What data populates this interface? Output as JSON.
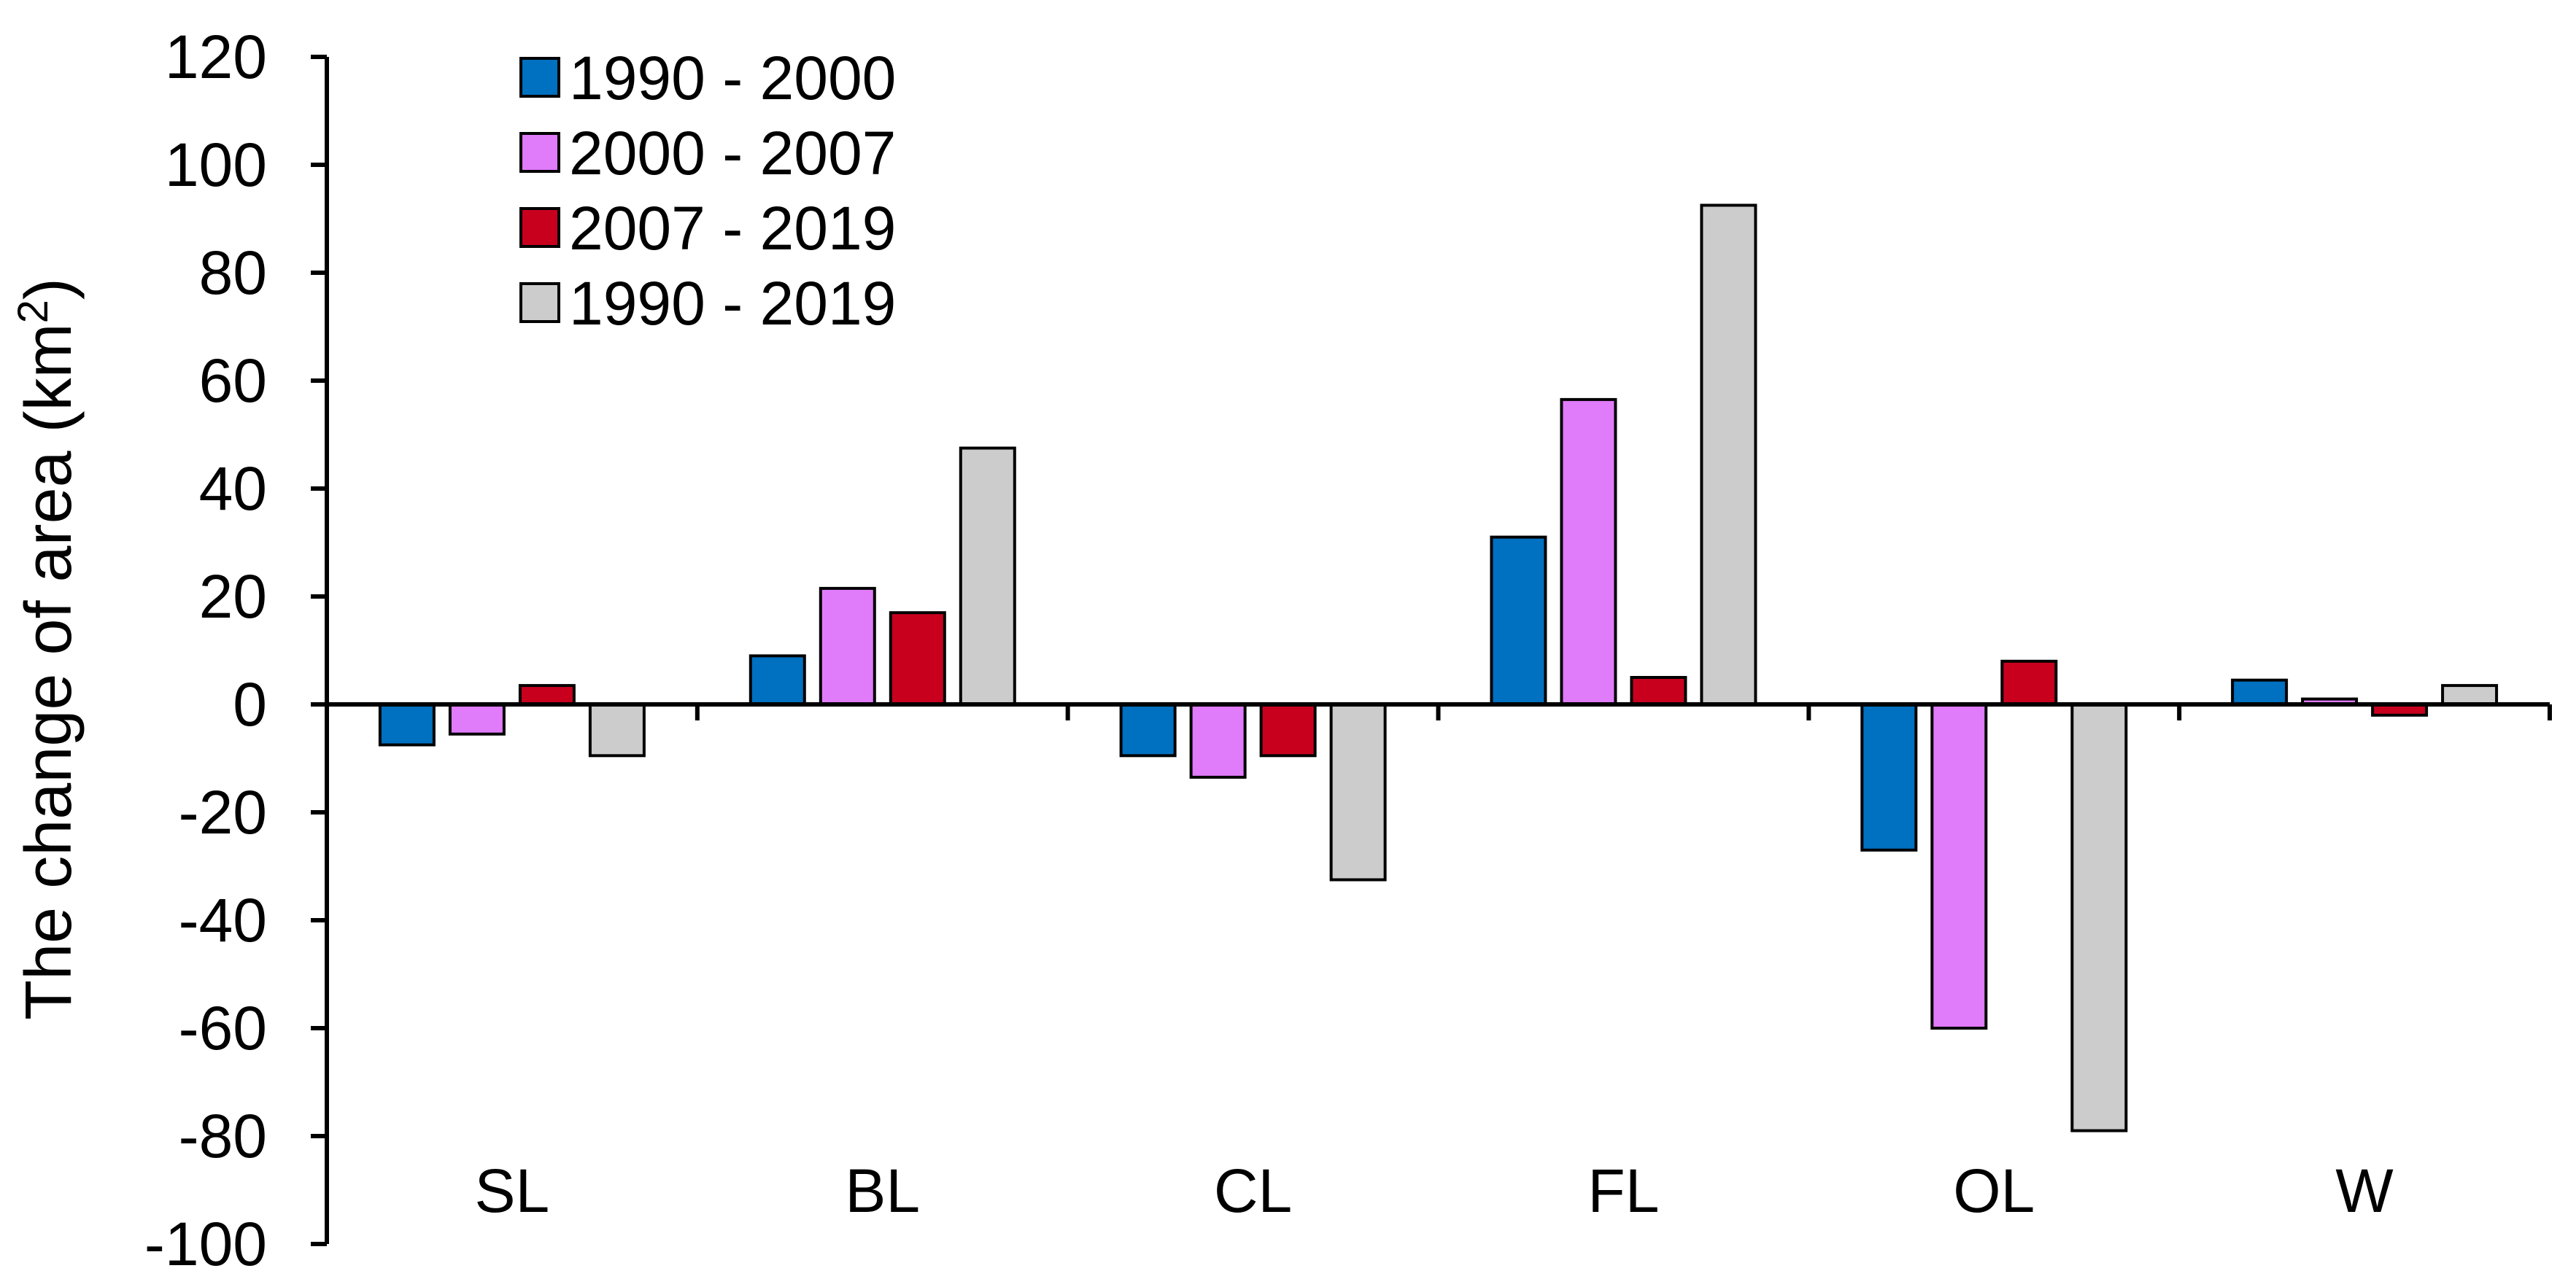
{
  "chart_data": {
    "type": "bar",
    "title": "",
    "xlabel": "",
    "ylabel": "The change of area (km²)",
    "ylabel_parts": {
      "text": "The change of area (km",
      "sup": "2",
      "close": ")"
    },
    "ylim": [
      -100,
      120
    ],
    "ytick_step": 20,
    "yticks": [
      120,
      100,
      80,
      60,
      40,
      20,
      0,
      -20,
      -40,
      -60,
      -80,
      -100
    ],
    "grid": false,
    "legend_position": "top-left",
    "categories": [
      "SL",
      "BL",
      "CL",
      "FL",
      "OL",
      "W"
    ],
    "series": [
      {
        "name": "1990 - 2000",
        "color": "#0070C0",
        "values": [
          -7.5,
          9,
          -9.5,
          31,
          -27,
          4.5
        ]
      },
      {
        "name": "2000 - 2007",
        "color": "#E07BFA",
        "values": [
          -5.5,
          21.5,
          -13.5,
          56.5,
          -60,
          1
        ]
      },
      {
        "name": "2007 - 2019",
        "color": "#C8001E",
        "values": [
          3.5,
          17,
          -9.5,
          5,
          8,
          -2
        ]
      },
      {
        "name": "1990 - 2019",
        "color": "#CCCCCC",
        "values": [
          -9.5,
          47.5,
          -32.5,
          92.5,
          -79,
          3.5
        ]
      }
    ]
  }
}
